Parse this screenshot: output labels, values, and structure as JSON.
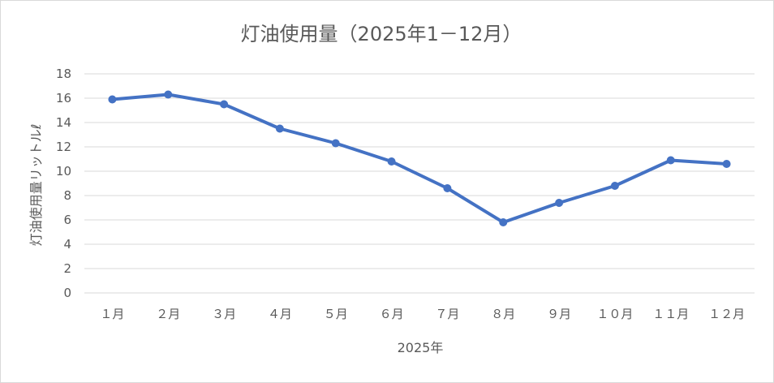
{
  "chart_data": {
    "type": "line",
    "title": "灯油使用量（2025年1－12月）",
    "xlabel": "2025年",
    "ylabel": "灯油使用量リットルℓ",
    "categories": [
      "１月",
      "２月",
      "３月",
      "４月",
      "５月",
      "６月",
      "７月",
      "８月",
      "９月",
      "１０月",
      "１１月",
      "１２月"
    ],
    "series": [
      {
        "values": [
          15.9,
          16.3,
          15.5,
          13.5,
          12.3,
          10.8,
          8.6,
          5.8,
          7.4,
          8.8,
          10.9,
          10.6
        ]
      }
    ],
    "ylim": [
      0,
      18
    ],
    "yticks": [
      "0",
      "2",
      "4",
      "6",
      "8",
      "10",
      "12",
      "14",
      "16",
      "18"
    ],
    "grid": true,
    "legend": "none",
    "colors": {
      "series": "#4472c4",
      "grid": "#d9d9d9",
      "text": "#595959"
    }
  }
}
